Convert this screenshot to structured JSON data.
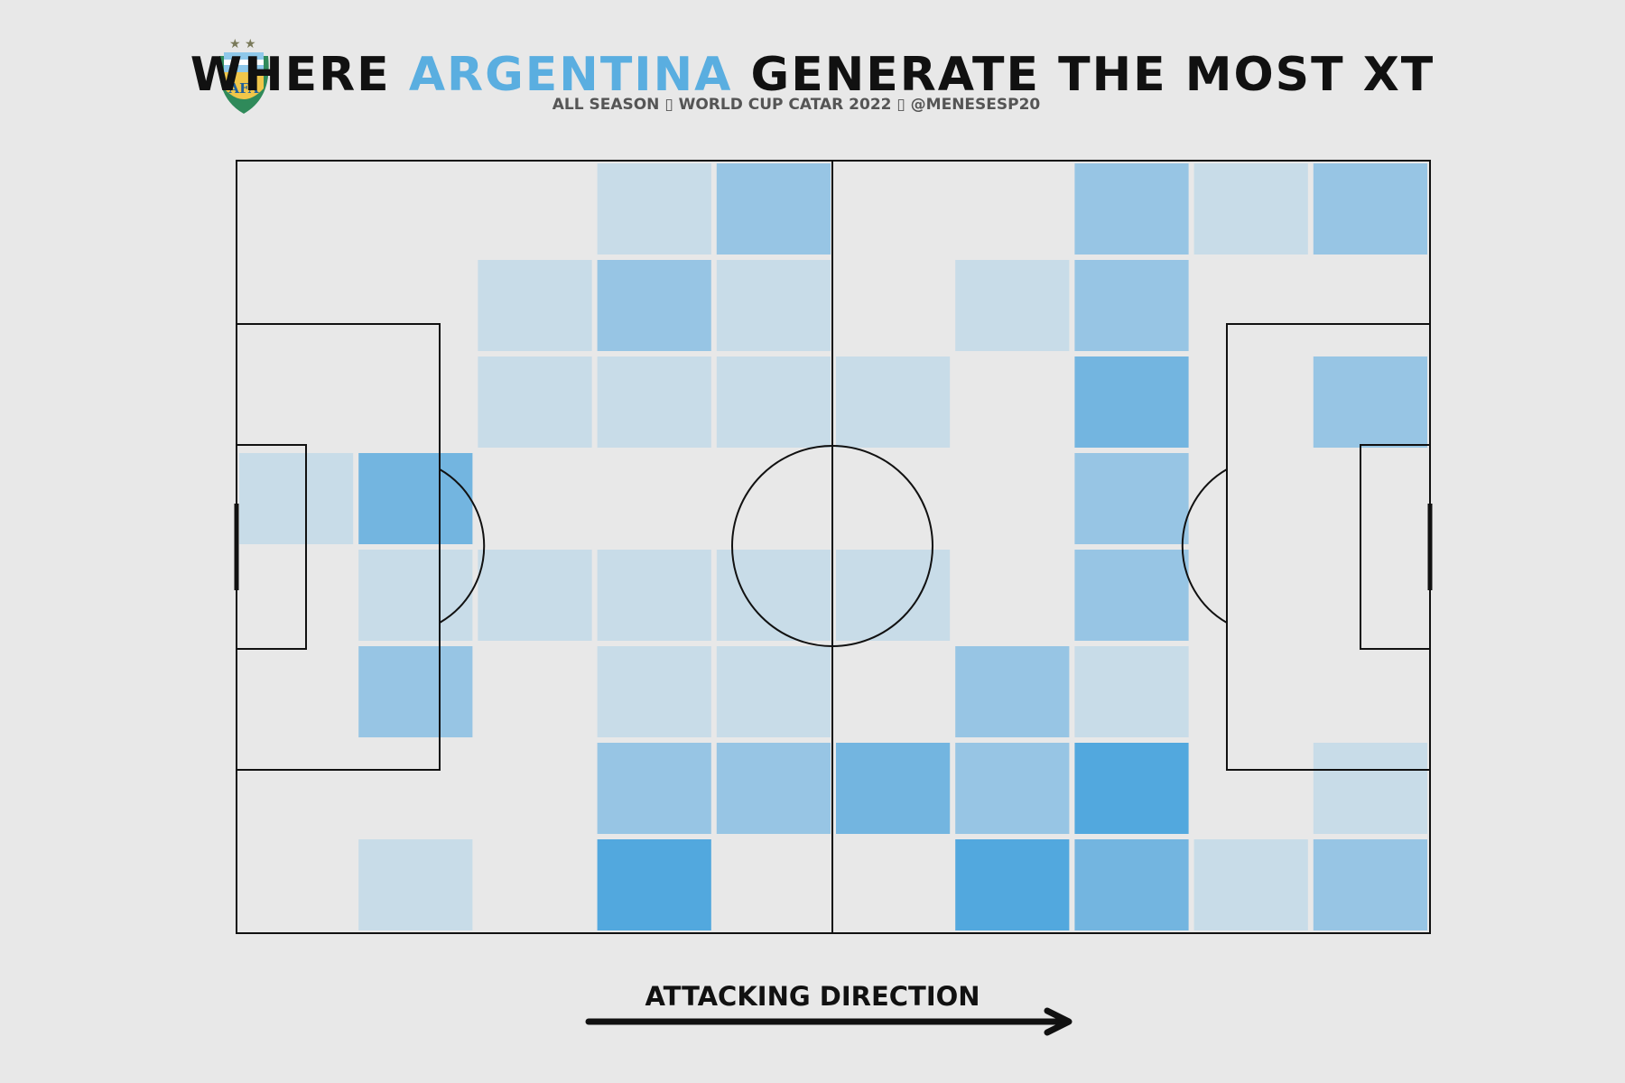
{
  "title": {
    "prefix": "WHERE ",
    "highlight": "ARGENTINA",
    "suffix": " GENERATE THE MOST XT",
    "highlight_color": "#5aaee0"
  },
  "subtitle": "ALL SEASON ▯ WORLD CUP CATAR 2022 ▯ @MENESESP20",
  "logo": {
    "icon": "afa-crest-icon",
    "text": "AFA"
  },
  "attacking_direction": {
    "label": "ATTACKING DIRECTION",
    "icon": "right-arrow-icon"
  },
  "colors": {
    "background": "#e8e8e8",
    "pitch_lines": "#111111",
    "level_1": "#c8dce8",
    "level_2": "#97c5e4",
    "level_3": "#73b5e0",
    "level_4": "#52a8de"
  },
  "chart_data": {
    "type": "heatmap",
    "description_axis": "10 columns (left to right) x 8 rows (top to bottom); values are relative xT intensity levels 0-4 read from shading",
    "columns": 10,
    "rows": 8,
    "values": [
      [
        0,
        0,
        0,
        1,
        2,
        0,
        0,
        2,
        1,
        2
      ],
      [
        0,
        0,
        1,
        2,
        1,
        0,
        1,
        2,
        0,
        0
      ],
      [
        0,
        0,
        1,
        1,
        1,
        1,
        0,
        3,
        0,
        2
      ],
      [
        1,
        3,
        0,
        0,
        0,
        0,
        0,
        2,
        0,
        0
      ],
      [
        0,
        1,
        1,
        1,
        1,
        1,
        0,
        2,
        0,
        0
      ],
      [
        0,
        2,
        0,
        1,
        1,
        0,
        2,
        1,
        0,
        0
      ],
      [
        0,
        0,
        0,
        2,
        2,
        3,
        2,
        4,
        0,
        1
      ],
      [
        0,
        1,
        0,
        4,
        0,
        0,
        4,
        3,
        1,
        2
      ]
    ]
  }
}
